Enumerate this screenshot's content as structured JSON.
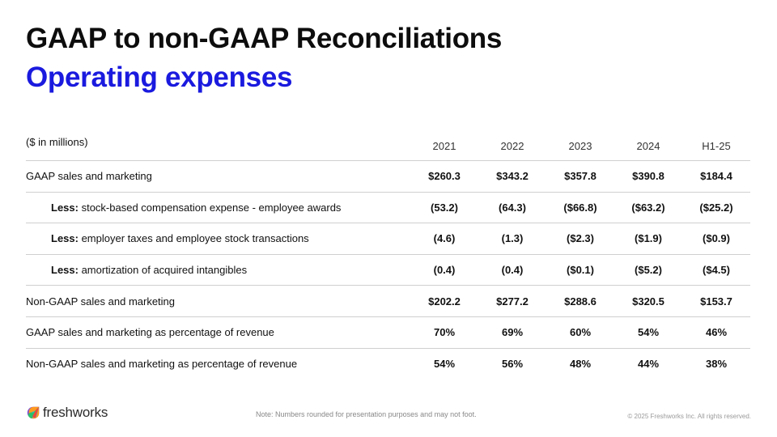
{
  "header": {
    "title": "GAAP to non-GAAP Reconciliations",
    "subtitle": "Operating expenses"
  },
  "table": {
    "unit_label": "($ in millions)",
    "columns": [
      "2021",
      "2022",
      "2023",
      "2024",
      "H1-25"
    ],
    "rows": [
      {
        "prefix": "",
        "label": "GAAP sales and marketing",
        "indent": false,
        "values": [
          "$260.3",
          "$343.2",
          "$357.8",
          "$390.8",
          "$184.4"
        ]
      },
      {
        "prefix": "Less:",
        "label": " stock-based compensation expense - employee awards",
        "indent": true,
        "values": [
          "(53.2)",
          "(64.3)",
          "($66.8)",
          "($63.2)",
          "($25.2)"
        ]
      },
      {
        "prefix": "Less:",
        "label": " employer taxes and employee stock transactions",
        "indent": true,
        "values": [
          "(4.6)",
          "(1.3)",
          "($2.3)",
          "($1.9)",
          "($0.9)"
        ]
      },
      {
        "prefix": "Less:",
        "label": " amortization of acquired intangibles",
        "indent": true,
        "values": [
          "(0.4)",
          "(0.4)",
          "($0.1)",
          "($5.2)",
          "($4.5)"
        ]
      },
      {
        "prefix": "",
        "label": "Non-GAAP sales and marketing",
        "indent": false,
        "values": [
          "$202.2",
          "$277.2",
          "$288.6",
          "$320.5",
          "$153.7"
        ]
      },
      {
        "prefix": "",
        "label": "GAAP sales and marketing as percentage of revenue",
        "indent": false,
        "values": [
          "70%",
          "69%",
          "60%",
          "54%",
          "46%"
        ]
      },
      {
        "prefix": "",
        "label": "Non-GAAP sales and marketing as percentage of revenue",
        "indent": false,
        "values": [
          "54%",
          "56%",
          "48%",
          "44%",
          "38%"
        ]
      }
    ]
  },
  "footer": {
    "logo_text": "freshworks",
    "logo_icon": "freshworks-logo-icon",
    "note": "Note: Numbers rounded for presentation purposes and may not foot.",
    "copyright": "© 2025 Freshworks Inc. All rights reserved."
  },
  "colors": {
    "title": "#0d0d0d",
    "subtitle": "#1a1adf",
    "rule": "#cfcfcf"
  }
}
